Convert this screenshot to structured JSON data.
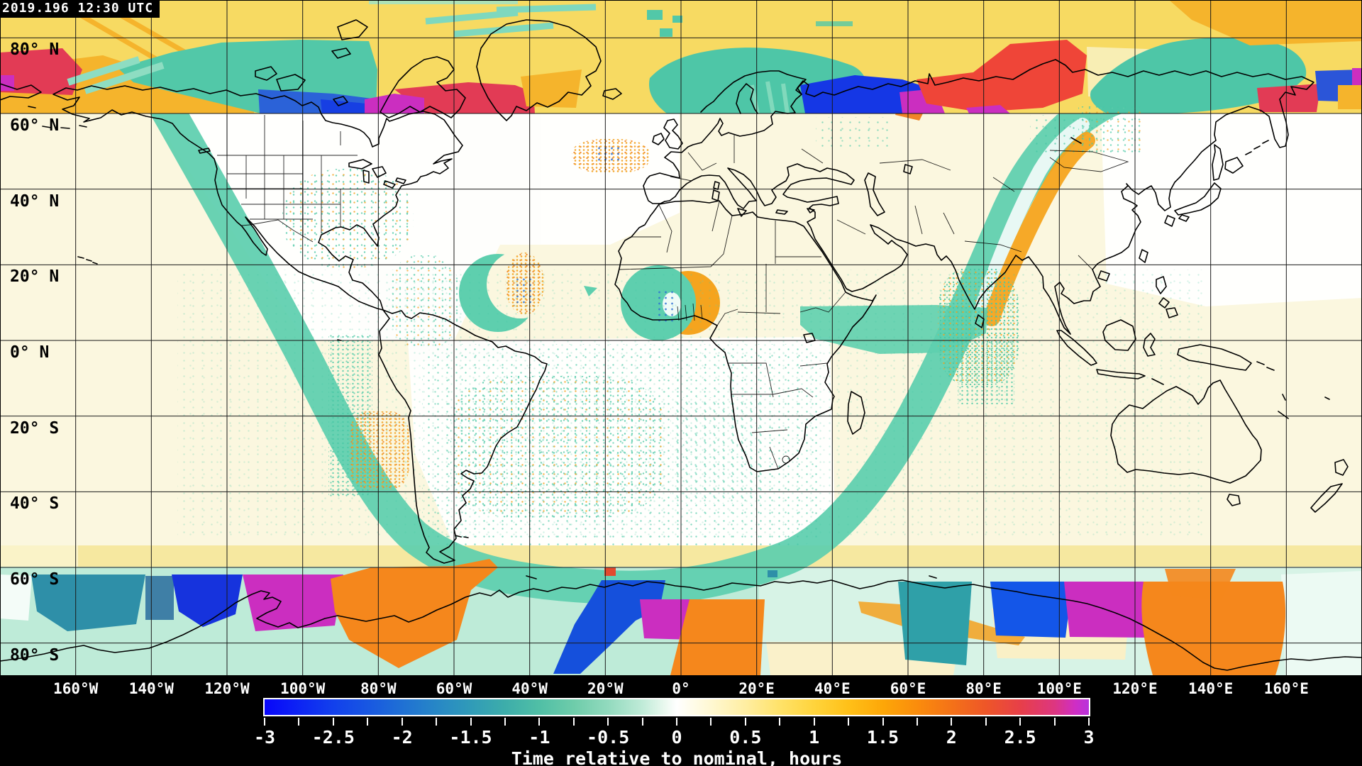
{
  "header": {
    "timestamp": "2019.196 12:30 UTC"
  },
  "map": {
    "projection": "equirectangular",
    "grid_step_deg": 20,
    "lat_labels": [
      {
        "text": "80° N",
        "lat": 80
      },
      {
        "text": "60° N",
        "lat": 60
      },
      {
        "text": "40° N",
        "lat": 40
      },
      {
        "text": "20° N",
        "lat": 20
      },
      {
        "text": "0° N",
        "lat": 0
      },
      {
        "text": "20° S",
        "lat": -20
      },
      {
        "text": "40° S",
        "lat": -40
      },
      {
        "text": "60° S",
        "lat": -60
      },
      {
        "text": "80° S",
        "lat": -80
      }
    ],
    "lon_labels": [
      {
        "text": "160°W",
        "lon": -160
      },
      {
        "text": "140°W",
        "lon": -140
      },
      {
        "text": "120°W",
        "lon": -120
      },
      {
        "text": "100°W",
        "lon": -100
      },
      {
        "text": "80°W",
        "lon": -80
      },
      {
        "text": "60°W",
        "lon": -60
      },
      {
        "text": "40°W",
        "lon": -40
      },
      {
        "text": "20°W",
        "lon": -20
      },
      {
        "text": "0°",
        "lon": 0
      },
      {
        "text": "20°E",
        "lon": 20
      },
      {
        "text": "40°E",
        "lon": 40
      },
      {
        "text": "60°E",
        "lon": 60
      },
      {
        "text": "80°E",
        "lon": 80
      },
      {
        "text": "100°E",
        "lon": 100
      },
      {
        "text": "120°E",
        "lon": 120
      },
      {
        "text": "140°E",
        "lon": 140
      },
      {
        "text": "160°E",
        "lon": 160
      }
    ]
  },
  "colorbar": {
    "title": "Time relative to nominal, hours",
    "min": -3,
    "max": 3,
    "major_tick_step": 0.5,
    "minor_tick_step": 0.25,
    "tick_labels": [
      "-3",
      "-2.5",
      "-2",
      "-1.5",
      "-1",
      "-0.5",
      "0",
      "0.5",
      "1",
      "1.5",
      "2",
      "2.5",
      "3"
    ],
    "gradient_stops": [
      {
        "value": -3,
        "color": "#0806fa"
      },
      {
        "value": -2.75,
        "color": "#0d24f4"
      },
      {
        "value": -2.5,
        "color": "#1240ec"
      },
      {
        "value": -2.25,
        "color": "#1857e2"
      },
      {
        "value": -2,
        "color": "#1f70d4"
      },
      {
        "value": -1.75,
        "color": "#2787c6"
      },
      {
        "value": -1.5,
        "color": "#309bb8"
      },
      {
        "value": -1.25,
        "color": "#3dadaa"
      },
      {
        "value": -1,
        "color": "#50bfa6"
      },
      {
        "value": -0.75,
        "color": "#6eccaa"
      },
      {
        "value": -0.5,
        "color": "#92dabe"
      },
      {
        "value": -0.25,
        "color": "#c0ebd8"
      },
      {
        "value": -0.08,
        "color": "#ecf9f0"
      },
      {
        "value": 0,
        "color": "#ffffff"
      },
      {
        "value": 0.08,
        "color": "#fffdf0"
      },
      {
        "value": 0.25,
        "color": "#fff8d2"
      },
      {
        "value": 0.5,
        "color": "#ffeea2"
      },
      {
        "value": 0.75,
        "color": "#ffe269"
      },
      {
        "value": 1,
        "color": "#ffd43c"
      },
      {
        "value": 1.25,
        "color": "#ffc018"
      },
      {
        "value": 1.5,
        "color": "#fda708"
      },
      {
        "value": 1.75,
        "color": "#fa8c0c"
      },
      {
        "value": 2,
        "color": "#f47218"
      },
      {
        "value": 2.25,
        "color": "#ee5628"
      },
      {
        "value": 2.5,
        "color": "#e73f49"
      },
      {
        "value": 2.75,
        "color": "#dd3680"
      },
      {
        "value": 2.9,
        "color": "#cf2ec4"
      },
      {
        "value": 3,
        "color": "#b832dc"
      }
    ]
  },
  "palette": {
    "polar_band_yellow": "#f7da62",
    "golden_orange": "#f5b42c",
    "orange": "#f5871c",
    "swath_teal": "#5ecfae",
    "teal": "#4cc6a6",
    "mint": "#8eddc2",
    "crimson": "#e23b55",
    "tomato_red": "#ef4538",
    "magenta": "#cb2ec0",
    "royal_blue": "#1633dd",
    "steel_blue": "#2b62d8",
    "dark_teal": "#2fa0a8",
    "antarctic_mint": "#beebd8",
    "pale_cyan": "#d7f3e6",
    "cream": "#fbf7df",
    "strip_yellow": "#f6e8a0"
  }
}
